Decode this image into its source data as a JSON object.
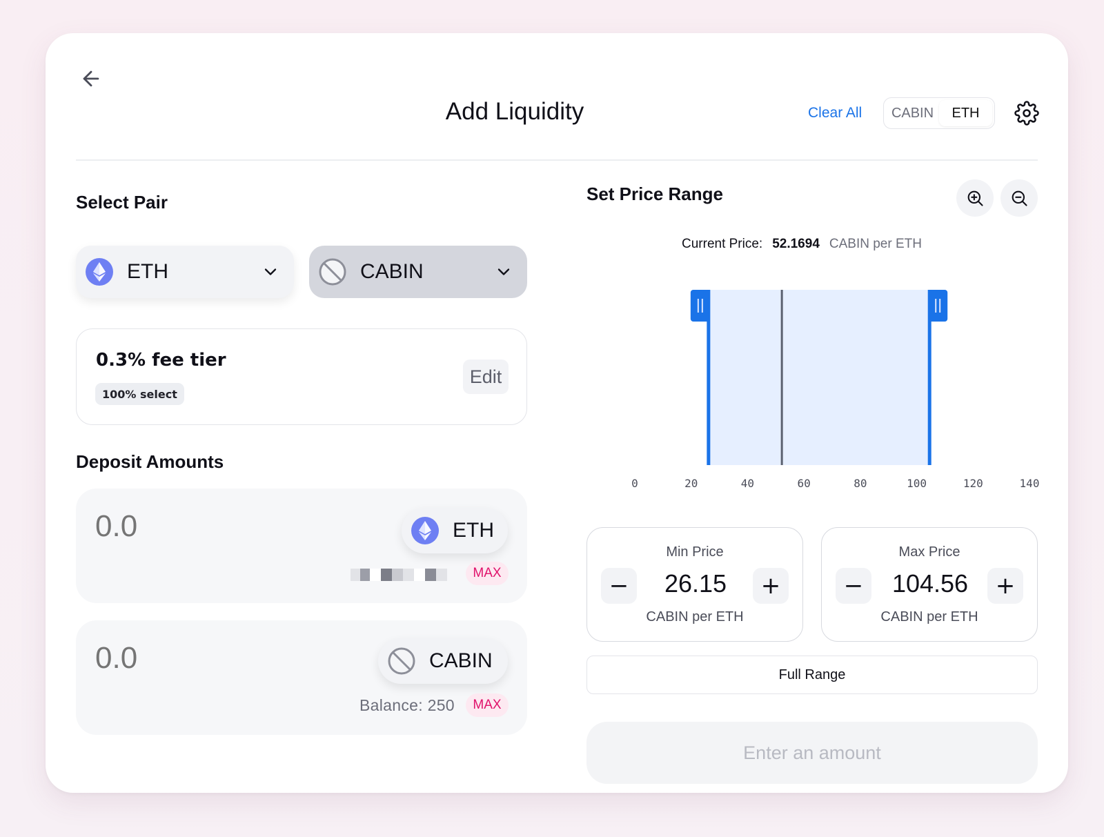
{
  "header": {
    "title": "Add Liquidity",
    "clear_all": "Clear All",
    "denomination": {
      "options": [
        "CABIN",
        "ETH"
      ],
      "selected": "ETH"
    }
  },
  "select_pair": {
    "title": "Select Pair",
    "token_a": {
      "symbol": "ETH",
      "icon": "ethereum-icon"
    },
    "token_b": {
      "symbol": "CABIN",
      "icon": "no-logo-icon"
    }
  },
  "fee_tier": {
    "label": "0.3% fee tier",
    "badge": "100% select",
    "edit_label": "Edit"
  },
  "deposit": {
    "title": "Deposit Amounts",
    "token_a": {
      "placeholder": "0.0",
      "symbol": "ETH",
      "max_label": "MAX"
    },
    "token_b": {
      "placeholder": "0.0",
      "symbol": "CABIN",
      "balance": "Balance: 250",
      "max_label": "MAX"
    }
  },
  "price_range": {
    "title": "Set Price Range",
    "current_price_label": "Current Price:",
    "current_price_value": "52.1694",
    "current_price_unit": "CABIN per ETH",
    "min": {
      "label": "Min Price",
      "value": "26.15",
      "unit": "CABIN per ETH"
    },
    "max": {
      "label": "Max Price",
      "value": "104.56",
      "unit": "CABIN per ETH"
    },
    "full_range_label": "Full Range",
    "submit_label": "Enter an amount"
  },
  "chart_data": {
    "type": "range",
    "x_ticks": [
      0,
      20,
      40,
      60,
      80,
      100,
      120,
      140
    ],
    "xlim": [
      0,
      140
    ],
    "current_price": 52.1694,
    "range_min": 26.15,
    "range_max": 104.56
  },
  "colors": {
    "accent": "#1a73e8",
    "range_fill": "#e6efff",
    "handle": "#1a73e8",
    "current_line": "#5b6170",
    "max_text": "#e0126b",
    "max_bg": "#fde9f1"
  }
}
